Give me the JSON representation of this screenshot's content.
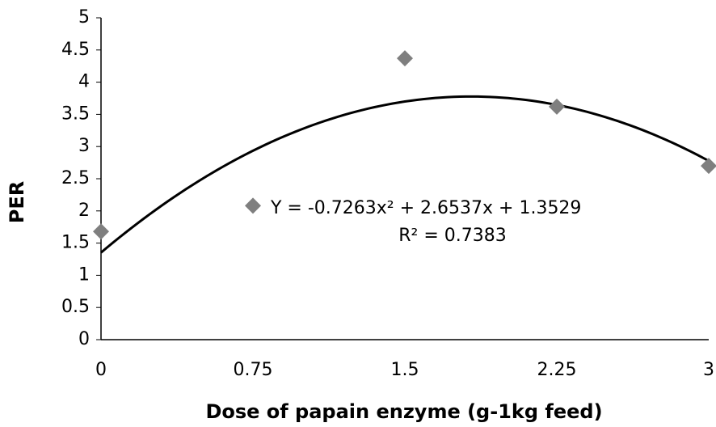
{
  "chart_data": {
    "type": "scatter",
    "x_label": "Dose of papain enzyme (g-1kg feed)",
    "y_label": "PER",
    "x": [
      0,
      0.75,
      1.5,
      2.25,
      3
    ],
    "series": [
      {
        "name": "PER",
        "color": "#7f7f7f",
        "values": [
          1.68,
          2.08,
          4.37,
          3.62,
          2.7
        ]
      }
    ],
    "xlim": [
      0,
      3
    ],
    "xticks": [
      0,
      0.75,
      1.5,
      2.25,
      3
    ],
    "ylim": [
      0,
      5
    ],
    "yticks": [
      0,
      0.5,
      1,
      1.5,
      2,
      2.5,
      3,
      3.5,
      4,
      4.5,
      5
    ],
    "grid": false,
    "trendline": {
      "type": "polynomial",
      "coefficients": [
        -0.7263,
        2.6537,
        1.3529
      ],
      "equation": "Y = -0.7263x² + 2.6537x + 1.3529",
      "r_squared": "R² = 0.7383",
      "color": "#000000"
    }
  }
}
